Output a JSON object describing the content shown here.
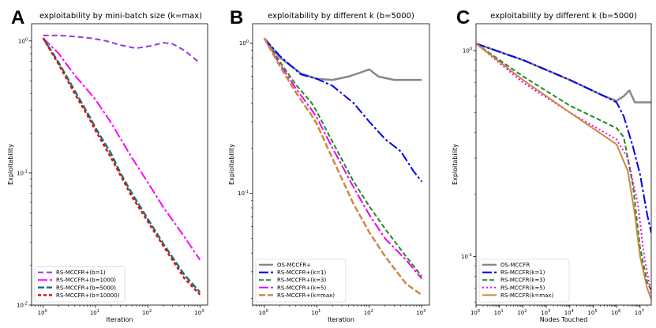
{
  "chart_data": [
    {
      "panel": "A",
      "type": "line",
      "title": "exploitability by mini-batch size (k=max)",
      "xlabel": "Iteration",
      "ylabel": "Exploitability",
      "xscale": "log",
      "yscale": "log",
      "xlim": [
        0.6,
        1400
      ],
      "ylim": [
        0.01,
        1.35
      ],
      "xticks": [
        {
          "v": 1,
          "b": "10",
          "e": "0"
        },
        {
          "v": 10,
          "b": "10",
          "e": "1"
        },
        {
          "v": 100,
          "b": "10",
          "e": "2"
        },
        {
          "v": 1000,
          "b": "10",
          "e": "3"
        }
      ],
      "yticks": [
        {
          "v": 0.01,
          "b": "10",
          "e": "-2"
        },
        {
          "v": 0.1,
          "b": "10",
          "e": "-1"
        },
        {
          "v": 1,
          "b": "10",
          "e": "0"
        }
      ],
      "legend_position": "lower-left",
      "series": [
        {
          "name": "RS-MCCFR+(b=1)",
          "color": "#9933ee",
          "dash": "7,4",
          "width": 2,
          "x": [
            1,
            2,
            4,
            8,
            16,
            30,
            60,
            120,
            200,
            300,
            500,
            1000
          ],
          "y": [
            1.1,
            1.1,
            1.08,
            1.05,
            1.0,
            0.93,
            0.88,
            0.92,
            0.97,
            0.95,
            0.85,
            0.68
          ]
        },
        {
          "name": "RS-MCCFR+(b=1000)",
          "color": "#ff00ff",
          "dash": "12,3,3,3",
          "width": 2,
          "x": [
            1,
            2,
            4,
            8,
            10,
            20,
            50,
            100,
            200,
            500,
            1000
          ],
          "y": [
            1.05,
            0.8,
            0.55,
            0.4,
            0.36,
            0.24,
            0.13,
            0.085,
            0.055,
            0.033,
            0.022
          ]
        },
        {
          "name": "RS-MCCFR+(b=5000)",
          "color": "#117777",
          "dash": "8,3",
          "width": 2.5,
          "x": [
            1,
            2,
            4,
            8,
            10,
            20,
            30,
            50,
            100,
            200,
            500,
            1000
          ],
          "y": [
            1.05,
            0.68,
            0.42,
            0.26,
            0.22,
            0.14,
            0.1,
            0.07,
            0.045,
            0.029,
            0.017,
            0.0125
          ]
        },
        {
          "name": "RS-MCCFR+(b=10000)",
          "color": "#dd1111",
          "dash": "4,3",
          "width": 2.5,
          "x": [
            1,
            2,
            4,
            8,
            10,
            20,
            50,
            100,
            200,
            500,
            1000
          ],
          "y": [
            1.05,
            0.66,
            0.4,
            0.25,
            0.21,
            0.13,
            0.066,
            0.043,
            0.028,
            0.016,
            0.012
          ]
        }
      ]
    },
    {
      "panel": "B",
      "type": "line",
      "title": "exploitability by different k (b=5000)",
      "xlabel": "Iteration",
      "ylabel": "Exploitability",
      "xscale": "log",
      "yscale": "log",
      "xlim": [
        0.6,
        1400
      ],
      "ylim": [
        0.018,
        1.35
      ],
      "xticks": [
        {
          "v": 1,
          "b": "10",
          "e": "0"
        },
        {
          "v": 10,
          "b": "10",
          "e": "1"
        },
        {
          "v": 100,
          "b": "10",
          "e": "2"
        },
        {
          "v": 1000,
          "b": "10",
          "e": "3"
        }
      ],
      "yticks": [
        {
          "v": 0.1,
          "b": "10",
          "e": "-1"
        },
        {
          "v": 1,
          "b": "10",
          "e": "0"
        }
      ],
      "legend_position": "lower-left",
      "series": [
        {
          "name": "OS-MCCFR+",
          "color": "#888888",
          "dash": "",
          "width": 2.5,
          "x": [
            1,
            2,
            5,
            10,
            20,
            40,
            70,
            100,
            150,
            300,
            1000
          ],
          "y": [
            1.08,
            0.8,
            0.63,
            0.58,
            0.57,
            0.6,
            0.64,
            0.67,
            0.6,
            0.57,
            0.57
          ]
        },
        {
          "name": "RS-MCCFR+(k=1)",
          "color": "#0000ee",
          "dash": "12,3,3,3",
          "width": 2,
          "x": [
            1,
            2,
            5,
            10,
            20,
            50,
            100,
            200,
            400,
            700,
            1000
          ],
          "y": [
            1.08,
            0.82,
            0.62,
            0.58,
            0.52,
            0.4,
            0.3,
            0.23,
            0.19,
            0.14,
            0.12
          ]
        },
        {
          "name": "RS-MCCFR+(k=3)",
          "color": "#228822",
          "dash": "6,3",
          "width": 2,
          "x": [
            1,
            2,
            4,
            8,
            10,
            20,
            50,
            100,
            200,
            500,
            1000
          ],
          "y": [
            1.08,
            0.75,
            0.53,
            0.4,
            0.35,
            0.22,
            0.12,
            0.082,
            0.058,
            0.038,
            0.028
          ]
        },
        {
          "name": "RS-MCCFR+(k=5)",
          "color": "#ee00ee",
          "dash": "12,3,3,3",
          "width": 2,
          "x": [
            1,
            2,
            4,
            8,
            10,
            20,
            50,
            100,
            200,
            500,
            1000
          ],
          "y": [
            1.08,
            0.72,
            0.5,
            0.36,
            0.32,
            0.2,
            0.11,
            0.072,
            0.05,
            0.036,
            0.027
          ]
        },
        {
          "name": "RS-MCCFR+(k=max)",
          "color": "#cc8844",
          "dash": "8,3",
          "width": 2.5,
          "x": [
            1,
            2,
            4,
            8,
            10,
            20,
            50,
            100,
            200,
            500,
            1000
          ],
          "y": [
            1.08,
            0.7,
            0.47,
            0.33,
            0.29,
            0.17,
            0.085,
            0.055,
            0.038,
            0.025,
            0.021
          ]
        }
      ]
    },
    {
      "panel": "C",
      "type": "line",
      "title": "exploitability by different k (b=5000)",
      "xlabel": "Nodes Touched",
      "ylabel": "Exploitability",
      "xscale": "log",
      "yscale": "log",
      "xlim": [
        1,
        30000000
      ],
      "ylim": [
        0.058,
        1.35
      ],
      "xticks": [
        {
          "v": 1,
          "b": "10",
          "e": "0"
        },
        {
          "v": 10,
          "b": "10",
          "e": "1"
        },
        {
          "v": 100,
          "b": "10",
          "e": "2"
        },
        {
          "v": 1000,
          "b": "10",
          "e": "3"
        },
        {
          "v": 10000,
          "b": "10",
          "e": "4"
        },
        {
          "v": 100000,
          "b": "10",
          "e": "5"
        },
        {
          "v": 1000000,
          "b": "10",
          "e": "6"
        },
        {
          "v": 10000000,
          "b": "10",
          "e": "7"
        }
      ],
      "yticks": [
        {
          "v": 0.1,
          "b": "10",
          "e": "-1"
        },
        {
          "v": 1,
          "b": "10",
          "e": "0"
        }
      ],
      "legend_position": "lower-left",
      "series": [
        {
          "name": "OS-MCCFR",
          "color": "#888888",
          "dash": "",
          "width": 2.5,
          "x": [
            1,
            100,
            10000,
            300000,
            1000000,
            2000000,
            3500000,
            6000000,
            30000000
          ],
          "y": [
            1.08,
            0.9,
            0.72,
            0.6,
            0.57,
            0.6,
            0.64,
            0.56,
            0.56
          ]
        },
        {
          "name": "RS-MCCFR(k=1)",
          "color": "#0000ee",
          "dash": "12,3,3,3",
          "width": 2,
          "x": [
            1,
            100,
            10000,
            300000,
            1000000,
            2000000,
            5000000,
            10000000,
            20000000,
            30000000
          ],
          "y": [
            1.08,
            0.9,
            0.72,
            0.6,
            0.56,
            0.48,
            0.34,
            0.25,
            0.16,
            0.13
          ]
        },
        {
          "name": "RS-MCCFR(k=3)",
          "color": "#228822",
          "dash": "6,3",
          "width": 2,
          "x": [
            1,
            100,
            10000,
            1000000,
            2000000,
            5000000,
            10000000,
            20000000,
            30000000
          ],
          "y": [
            1.08,
            0.75,
            0.54,
            0.42,
            0.38,
            0.22,
            0.11,
            0.075,
            0.068
          ]
        },
        {
          "name": "RS-MCCFR(k=5)",
          "color": "#ee00ee",
          "dash": "2,3",
          "width": 2,
          "x": [
            1,
            100,
            10000,
            1000000,
            3000000,
            8000000,
            15000000,
            30000000
          ],
          "y": [
            1.08,
            0.7,
            0.5,
            0.37,
            0.3,
            0.18,
            0.1,
            0.065
          ]
        },
        {
          "name": "RS-MCCFR(k=max)",
          "color": "#cc8844",
          "dash": "",
          "width": 2,
          "x": [
            1,
            100,
            10000,
            1000000,
            3000000,
            6000000,
            10000000,
            20000000,
            30000000
          ],
          "y": [
            1.08,
            0.72,
            0.5,
            0.35,
            0.26,
            0.16,
            0.1,
            0.07,
            0.062
          ]
        }
      ]
    }
  ]
}
